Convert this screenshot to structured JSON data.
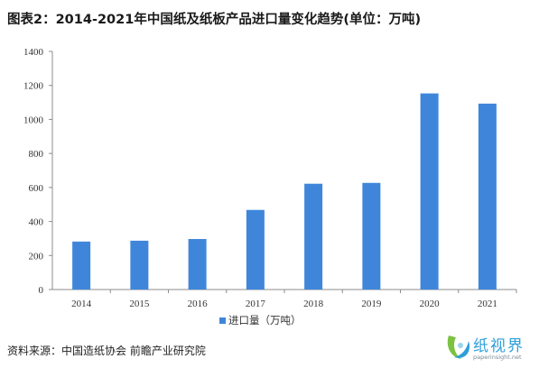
{
  "chart_data": {
    "type": "bar",
    "title": "图表2：2014-2021年中国纸及纸板产品进口量变化趋势(单位：万吨)",
    "categories": [
      "2014",
      "2015",
      "2016",
      "2017",
      "2018",
      "2019",
      "2020",
      "2021"
    ],
    "series": [
      {
        "name": "进口量（万吨）",
        "values": [
          282,
          287,
          297,
          468,
          622,
          627,
          1153,
          1093
        ]
      }
    ],
    "y_ticks": [
      "0",
      "200",
      "400",
      "600",
      "800",
      "1000",
      "1200",
      "1400"
    ],
    "ylim": [
      0,
      1400
    ],
    "grid": false,
    "legend_position": "bottom",
    "bar_color": "#3f86db"
  },
  "source": "资料来源：中国造纸协会 前瞻产业研究院",
  "logo": {
    "text": "纸视界",
    "url": "paperinsight.net"
  }
}
